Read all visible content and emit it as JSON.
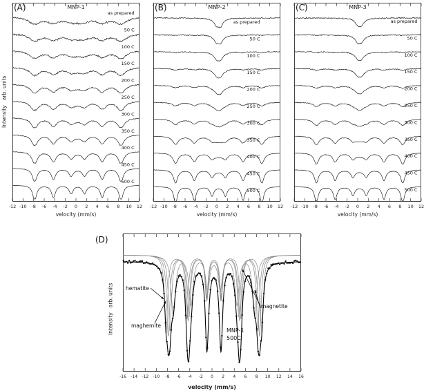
{
  "figure": {
    "background": "#ffffff",
    "line_color": "#222222",
    "axis_color": "#444444"
  },
  "panels": {
    "A": {
      "tag": "(A)",
      "title": "MNP-1",
      "xlabel": "velocity (mm/s)",
      "ylabel": "Intensity   arb. units"
    },
    "B": {
      "tag": "(B)",
      "title": "MNP-2",
      "xlabel": "velocity (mm/s)"
    },
    "C": {
      "tag": "(C)",
      "title": "MNP-3",
      "xlabel": "velocity (mm/s)"
    },
    "D": {
      "tag": "(D)",
      "xlabel": "velocity (mm/s)",
      "ylabel": "Intensity   arb. units",
      "sample_line1": "MNP-1",
      "sample_line2": "500C"
    }
  },
  "chart_data": [
    {
      "type": "line",
      "panel": "A",
      "title": "MNP-1",
      "xlabel": "velocity (mm/s)",
      "ylabel": "Intensity arb. units",
      "xlim": [
        -12,
        12
      ],
      "x_ticks": [
        -12,
        -10,
        -8,
        -6,
        -4,
        -2,
        0,
        2,
        4,
        6,
        8,
        10,
        12
      ],
      "description": "Stacked Moessbauer spectra of MNP-1 annealed at increasing temperature; broad sextet sharpens with temperature",
      "traces": [
        {
          "label": "as prepared",
          "sextet": 0.9,
          "doublet": 0.25,
          "depth": 0.4,
          "width": 1.35,
          "noise": 0.3
        },
        {
          "label": "50 C",
          "sextet": 0.9,
          "doublet": 0.22,
          "depth": 0.42,
          "width": 1.25,
          "noise": 0.28
        },
        {
          "label": "100 C",
          "sextet": 0.95,
          "doublet": 0.2,
          "depth": 0.45,
          "width": 1.15,
          "noise": 0.26
        },
        {
          "label": "150 C",
          "sextet": 0.95,
          "doublet": 0.18,
          "depth": 0.48,
          "width": 1.05,
          "noise": 0.24
        },
        {
          "label": "200 C",
          "sextet": 1.0,
          "doublet": 0.15,
          "depth": 0.52,
          "width": 0.95,
          "noise": 0.21
        },
        {
          "label": "250 C",
          "sextet": 1.0,
          "doublet": 0.12,
          "depth": 0.57,
          "width": 0.88,
          "noise": 0.18
        },
        {
          "label": "300 C",
          "sextet": 1.0,
          "doublet": 0.1,
          "depth": 0.63,
          "width": 0.8,
          "noise": 0.15
        },
        {
          "label": "350 C",
          "sextet": 1.0,
          "doublet": 0.08,
          "depth": 0.7,
          "width": 0.72,
          "noise": 0.13
        },
        {
          "label": "400 C",
          "sextet": 1.05,
          "doublet": 0.05,
          "depth": 0.8,
          "width": 0.62,
          "noise": 0.1
        },
        {
          "label": "450 C",
          "sextet": 1.05,
          "doublet": 0.03,
          "depth": 0.9,
          "width": 0.52,
          "noise": 0.08
        },
        {
          "label": "500 C",
          "sextet": 1.1,
          "doublet": 0.0,
          "depth": 1.0,
          "width": 0.45,
          "noise": 0.06
        }
      ]
    },
    {
      "type": "line",
      "panel": "B",
      "title": "MNP-2",
      "xlabel": "velocity (mm/s)",
      "ylabel": "Intensity arb. units",
      "xlim": [
        -12,
        12
      ],
      "x_ticks": [
        -12,
        -10,
        -8,
        -6,
        -4,
        -2,
        0,
        2,
        4,
        6,
        8,
        10,
        12
      ],
      "description": "Stacked Moessbauer spectra of MNP-2; superparamagnetic doublet converts to sextet on annealing",
      "traces": [
        {
          "label": "as prepared",
          "sextet": 0.0,
          "doublet": 1.1,
          "depth": 0.55,
          "width": 0.55,
          "noise": 0.18
        },
        {
          "label": "50 C",
          "sextet": 0.05,
          "doublet": 1.05,
          "depth": 0.55,
          "width": 0.55,
          "noise": 0.17
        },
        {
          "label": "100 C",
          "sextet": 0.1,
          "doublet": 1.0,
          "depth": 0.55,
          "width": 0.6,
          "noise": 0.16
        },
        {
          "label": "150 C",
          "sextet": 0.15,
          "doublet": 0.95,
          "depth": 0.57,
          "width": 0.65,
          "noise": 0.15
        },
        {
          "label": "200 C",
          "sextet": 0.25,
          "doublet": 0.85,
          "depth": 0.6,
          "width": 0.7,
          "noise": 0.14
        },
        {
          "label": "250 C",
          "sextet": 0.35,
          "doublet": 0.7,
          "depth": 0.65,
          "width": 0.75,
          "noise": 0.13
        },
        {
          "label": "300 C",
          "sextet": 0.5,
          "doublet": 0.55,
          "depth": 0.7,
          "width": 0.75,
          "noise": 0.12
        },
        {
          "label": "350 C",
          "sextet": 0.7,
          "doublet": 0.38,
          "depth": 0.78,
          "width": 0.68,
          "noise": 0.1
        },
        {
          "label": "400 C",
          "sextet": 0.85,
          "doublet": 0.22,
          "depth": 0.85,
          "width": 0.58,
          "noise": 0.09
        },
        {
          "label": "450 C",
          "sextet": 1.0,
          "doublet": 0.1,
          "depth": 0.95,
          "width": 0.48,
          "noise": 0.07
        },
        {
          "label": "500 C",
          "sextet": 1.15,
          "doublet": 0.03,
          "depth": 1.1,
          "width": 0.4,
          "noise": 0.05
        }
      ]
    },
    {
      "type": "line",
      "panel": "C",
      "title": "MNP-3",
      "xlabel": "velocity (mm/s)",
      "ylabel": "Intensity arb. units",
      "xlim": [
        -12,
        12
      ],
      "x_ticks": [
        -12,
        -10,
        -8,
        -6,
        -4,
        -2,
        0,
        2,
        4,
        6,
        8,
        10,
        12
      ],
      "description": "Stacked Moessbauer spectra of MNP-3; doublet to sextet evolution with annealing temperature",
      "traces": [
        {
          "label": "as prepared",
          "sextet": 0.0,
          "doublet": 1.0,
          "depth": 0.5,
          "width": 0.6,
          "noise": 0.2
        },
        {
          "label": "50 C",
          "sextet": 0.05,
          "doublet": 1.0,
          "depth": 0.52,
          "width": 0.6,
          "noise": 0.18
        },
        {
          "label": "100 C",
          "sextet": 0.1,
          "doublet": 0.95,
          "depth": 0.54,
          "width": 0.62,
          "noise": 0.17
        },
        {
          "label": "150 C",
          "sextet": 0.18,
          "doublet": 0.88,
          "depth": 0.56,
          "width": 0.68,
          "noise": 0.16
        },
        {
          "label": "200 C",
          "sextet": 0.28,
          "doublet": 0.78,
          "depth": 0.6,
          "width": 0.72,
          "noise": 0.14
        },
        {
          "label": "250 C",
          "sextet": 0.4,
          "doublet": 0.62,
          "depth": 0.66,
          "width": 0.75,
          "noise": 0.13
        },
        {
          "label": "300 C",
          "sextet": 0.55,
          "doublet": 0.45,
          "depth": 0.72,
          "width": 0.72,
          "noise": 0.11
        },
        {
          "label": "350 C",
          "sextet": 0.72,
          "doublet": 0.3,
          "depth": 0.8,
          "width": 0.64,
          "noise": 0.1
        },
        {
          "label": "400 C",
          "sextet": 0.88,
          "doublet": 0.16,
          "depth": 0.88,
          "width": 0.55,
          "noise": 0.08
        },
        {
          "label": "450 C",
          "sextet": 1.0,
          "doublet": 0.07,
          "depth": 0.95,
          "width": 0.47,
          "noise": 0.07
        },
        {
          "label": "500 C",
          "sextet": 1.1,
          "doublet": 0.02,
          "depth": 1.05,
          "width": 0.42,
          "noise": 0.05
        }
      ]
    },
    {
      "type": "scatter",
      "panel": "D",
      "title": "MNP-1 500C fitted spectrum",
      "xlabel": "velocity (mm/s)",
      "ylabel": "Intensity arb. units",
      "xlim": [
        -16,
        16
      ],
      "x_ticks": [
        -16,
        -14,
        -12,
        -10,
        -8,
        -6,
        -4,
        -2,
        0,
        2,
        4,
        6,
        8,
        10,
        12,
        14,
        16
      ],
      "description": "Moessbauer spectrum of MNP-1 annealed at 500C with sextet subcomponent fits",
      "components": [
        {
          "name": "hematite",
          "outer": 8.6,
          "width": 0.32,
          "depth": 0.5,
          "vis": 0.78
        },
        {
          "name": "maghemite",
          "outer": 8.2,
          "width": 0.34,
          "depth": 0.55,
          "vis": 0.8
        },
        {
          "name": "magnetite",
          "outer": 7.9,
          "width": 0.34,
          "depth": 0.5,
          "vis": 0.75
        },
        {
          "name": "magnetite",
          "outer": 7.3,
          "width": 0.45,
          "depth": 0.4,
          "vis": 0.6
        }
      ],
      "annotations": [
        {
          "text": "hematite"
        },
        {
          "text": "maghemite"
        },
        {
          "text": "magnetite"
        }
      ]
    }
  ]
}
